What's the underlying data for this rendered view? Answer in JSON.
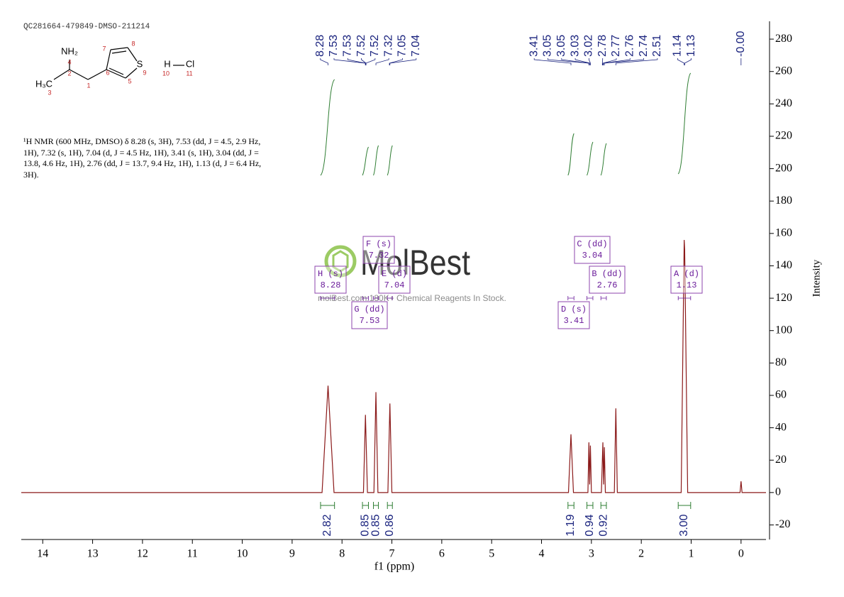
{
  "chart_data": {
    "type": "nmr",
    "title": "QC281664-479849-DMSO-211214",
    "x_label": "f1 (ppm)",
    "y_label": "Intensity",
    "xlim": [
      14.43,
      -0.5
    ],
    "xticks": [
      14,
      13,
      12,
      11,
      10,
      9,
      8,
      7,
      6,
      5,
      4,
      3,
      2,
      1,
      0
    ],
    "ylim": [
      -29,
      291
    ],
    "yticks": [
      -20,
      0,
      20,
      40,
      60,
      80,
      100,
      120,
      140,
      160,
      180,
      200,
      220,
      240,
      260,
      280
    ],
    "spectrum": {
      "color": "#8b1a1a",
      "x": [
        14.43,
        8.4,
        8.28,
        8.16,
        7.57,
        7.53,
        7.49,
        7.36,
        7.32,
        7.28,
        7.08,
        7.04,
        7.0,
        3.46,
        3.41,
        3.36,
        3.07,
        3.05,
        3.035,
        3.02,
        3.0,
        2.8,
        2.77,
        2.755,
        2.74,
        2.72,
        2.54,
        2.51,
        2.48,
        1.2,
        1.14,
        1.13,
        1.07,
        0.02,
        0.0,
        -0.02,
        -0.5
      ],
      "y": [
        0,
        0,
        66,
        0,
        0,
        48,
        0,
        0,
        62,
        0,
        0,
        55,
        0,
        0,
        36,
        0,
        0,
        31,
        5,
        29,
        0,
        0,
        31,
        5,
        28,
        0,
        0,
        52,
        0,
        0,
        156,
        150,
        0,
        0,
        7,
        0,
        0
      ]
    },
    "peaks": {
      "color": "#1a237e",
      "values": [
        8.28,
        7.53,
        7.53,
        7.52,
        7.52,
        7.32,
        7.05,
        7.04,
        3.41,
        3.05,
        3.05,
        3.03,
        3.02,
        2.78,
        2.77,
        2.76,
        2.74,
        2.51,
        1.14,
        1.13,
        -0.0
      ],
      "value_labels": [
        "8.28",
        "7.53",
        "7.53",
        "7.52",
        "7.52",
        "7.32",
        "7.05",
        "7.04",
        "3.41",
        "3.05",
        "3.05",
        "3.03",
        "3.02",
        "2.78",
        "2.77",
        "2.76",
        "2.74",
        "2.51",
        "1.14",
        "1.13",
        "-0.00"
      ]
    },
    "integrals": {
      "color": "#2e7d32",
      "label_color": "#1a237e",
      "ranges": [
        [
          8.43,
          8.15
        ],
        [
          7.59,
          7.47
        ],
        [
          7.37,
          7.27
        ],
        [
          7.09,
          6.99
        ],
        [
          3.47,
          3.35
        ],
        [
          3.09,
          2.97
        ],
        [
          2.81,
          2.7
        ],
        [
          1.26,
          1.01
        ]
      ],
      "values": [
        2.82,
        0.85,
        0.85,
        0.86,
        1.19,
        0.94,
        0.92,
        3
      ],
      "value_labels": [
        "2.82",
        "0.85",
        "0.85",
        "0.86",
        "1.19",
        "0.94",
        "0.92",
        "3.00"
      ]
    },
    "multiplets": [
      {
        "name": "H (s)",
        "shift": 8.28
      },
      {
        "name": "G (dd)",
        "shift": 7.53
      },
      {
        "name": "F (s)",
        "shift": 7.32
      },
      {
        "name": "E (d)",
        "shift": 7.04
      },
      {
        "name": "D (s)",
        "shift": 3.41
      },
      {
        "name": "C (dd)",
        "shift": 3.04
      },
      {
        "name": "B (dd)",
        "shift": 2.76
      },
      {
        "name": "A (d)",
        "shift": 1.13
      }
    ],
    "description": "¹H NMR (600 MHz, DMSO) δ 8.28 (s, 3H), 7.53 (dd, J = 4.5, 2.9 Hz, 1H), 7.32 (s, 1H), 7.04 (d, J = 4.5 Hz, 1H), 3.41 (s, 1H), 3.04 (dd, J = 13.8, 4.6 Hz, 1H), 2.76 (dd, J = 13.7, 9.4 Hz, 1H), 1.13 (d, J = 6.4 Hz, 3H).",
    "structure": {
      "atoms": [
        "NH₂",
        "H₃C",
        "S",
        "H",
        "Cl"
      ],
      "numbers": [
        "4",
        "2",
        "3",
        "1",
        "7",
        "8",
        "6",
        "5",
        "9",
        "10",
        "11"
      ]
    },
    "watermark": {
      "logo": "MolBest",
      "tagline": "molBest.com:180K+ Chemical Reagents In Stock."
    }
  }
}
